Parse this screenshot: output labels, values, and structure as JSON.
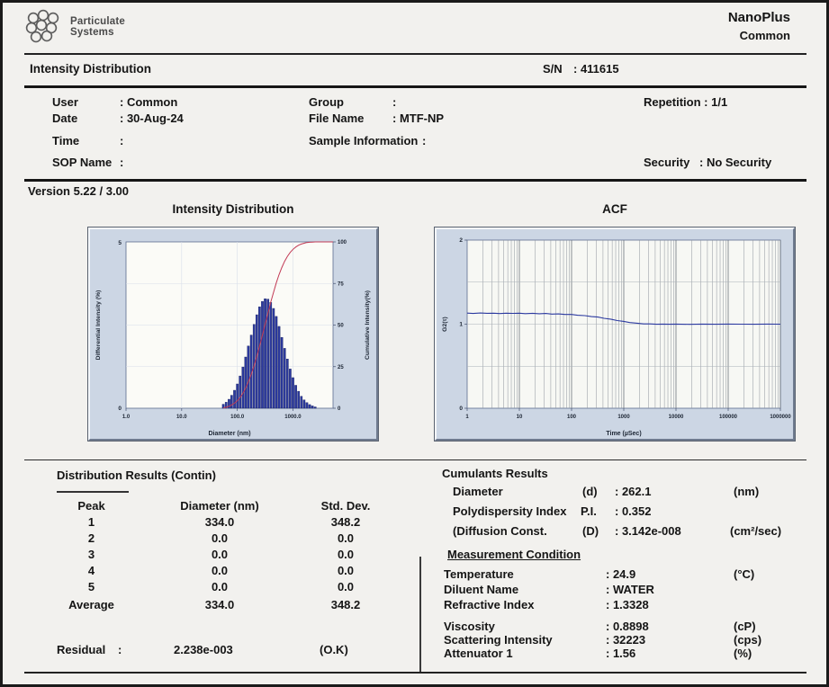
{
  "header": {
    "brand_line1": "Particulate",
    "brand_line2": "Systems",
    "product": "NanoPlus",
    "mode": "Common"
  },
  "report": {
    "title": "Intensity Distribution",
    "sn_label": "S/N",
    "sn_value": ": 411615",
    "version": "Version 5.22 / 3.00"
  },
  "info": {
    "user_label": "User",
    "user_value": ": Common",
    "date_label": "Date",
    "date_value": ": 30-Aug-24",
    "time_label": "Time",
    "time_value": ":",
    "sop_label": "SOP Name",
    "sop_value": ":",
    "group_label": "Group",
    "group_value": ":",
    "file_label": "File Name",
    "file_value": ": MTF-NP",
    "sample_label": "Sample Information",
    "sample_value": ":",
    "repetition": "Repetition : 1/1",
    "security_label": "Security",
    "security_value": ": No Security"
  },
  "distribution": {
    "title": "Distribution Results (Contin)",
    "columns": [
      "Peak",
      "Diameter (nm)",
      "Std. Dev."
    ],
    "rows": [
      {
        "peak": "1",
        "diameter": "334.0",
        "std": "348.2"
      },
      {
        "peak": "2",
        "diameter": "0.0",
        "std": "0.0"
      },
      {
        "peak": "3",
        "diameter": "0.0",
        "std": "0.0"
      },
      {
        "peak": "4",
        "diameter": "0.0",
        "std": "0.0"
      },
      {
        "peak": "5",
        "diameter": "0.0",
        "std": "0.0"
      },
      {
        "peak": "Average",
        "diameter": "334.0",
        "std": "348.2"
      }
    ],
    "residual_label": "Residual",
    "residual_colon": ":",
    "residual_value": "2.238e-003",
    "residual_flag": "(O.K)"
  },
  "cumulants": {
    "title": "Cumulants Results",
    "rows": [
      {
        "label": "Diameter",
        "symbol": "(d)",
        "value": ": 262.1",
        "unit": "(nm)"
      },
      {
        "label": "Polydispersity Index",
        "symbol": "P.I.",
        "value": ": 0.352",
        "unit": ""
      },
      {
        "label": "(Diffusion Const.",
        "symbol": "(D)",
        "value": ": 3.142e-008",
        "unit": "(cm²/sec)"
      }
    ]
  },
  "measurement": {
    "title": "Measurement Condition",
    "rows": [
      {
        "label": "Temperature",
        "value": ": 24.9",
        "unit": "(°C)"
      },
      {
        "label": "Diluent Name",
        "value": ": WATER",
        "unit": ""
      },
      {
        "label": "Refractive Index",
        "value": ": 1.3328",
        "unit": ""
      },
      {
        "label": "Viscosity",
        "value": ": 0.8898",
        "unit": "(cP)"
      },
      {
        "label": "Scattering Intensity",
        "value": ": 32223",
        "unit": "(cps)"
      },
      {
        "label": "Attenuator 1",
        "value": ": 1.56",
        "unit": "(%)"
      }
    ]
  },
  "chart_data": [
    {
      "type": "bar",
      "title": "Intensity Distribution",
      "xlabel": "Diameter (nm)",
      "ylabel": "Differential Intensity (%)",
      "ylabel_right": "Cumulative Intensity(%)",
      "x_scale": "log",
      "xlim_log10": [
        0,
        3.72
      ],
      "ylim": [
        0,
        5
      ],
      "ylim_right": [
        0,
        100
      ],
      "x_ticks": [
        "1.0",
        "10.0",
        "100.0",
        "1000.0"
      ],
      "y_ticks": [
        0,
        5
      ],
      "y_right_ticks": [
        0,
        25,
        50,
        75,
        100
      ],
      "bar_color": "#2c3aa0",
      "bar_stroke": "#18215f",
      "line_color": "#c23a55",
      "diameters": [
        56,
        63,
        71,
        79,
        89,
        100,
        112,
        126,
        141,
        158,
        178,
        200,
        224,
        251,
        282,
        316,
        355,
        398,
        447,
        501,
        562,
        631,
        708,
        794,
        891,
        1000,
        1122,
        1259,
        1413,
        1585,
        1778,
        1995,
        2239,
        2512
      ],
      "differential": [
        0.12,
        0.18,
        0.27,
        0.39,
        0.54,
        0.73,
        0.97,
        1.24,
        1.54,
        1.87,
        2.2,
        2.52,
        2.81,
        3.05,
        3.21,
        3.29,
        3.28,
        3.18,
        3.0,
        2.76,
        2.46,
        2.13,
        1.8,
        1.48,
        1.18,
        0.92,
        0.69,
        0.51,
        0.36,
        0.25,
        0.17,
        0.11,
        0.07,
        0.04
      ],
      "cumulative": [
        0.2,
        0.6,
        1.2,
        2.0,
        3.0,
        4.5,
        6.5,
        9.0,
        12.1,
        15.9,
        20.4,
        25.5,
        31.2,
        37.4,
        43.9,
        50.6,
        57.2,
        63.7,
        69.7,
        75.3,
        80.3,
        84.6,
        88.3,
        91.3,
        93.7,
        95.5,
        96.9,
        98.0,
        98.7,
        99.2,
        99.6,
        99.8,
        99.9,
        100.0
      ]
    },
    {
      "type": "line",
      "title": "ACF",
      "xlabel": "Time (µSec)",
      "ylabel": "G2(τ)",
      "x_scale": "log",
      "xlim_log10": [
        0,
        6
      ],
      "ylim": [
        0,
        2
      ],
      "x_ticks": [
        "1",
        "10",
        "100",
        "1000",
        "10000",
        "100000",
        "1000000"
      ],
      "y_ticks": [
        0,
        1,
        2
      ],
      "line_color": "#2c3aa0",
      "grid": "dense-log-vertical",
      "t": [
        1,
        1.3,
        1.8,
        2.4,
        3.2,
        4.2,
        5.6,
        7.5,
        10,
        13,
        18,
        24,
        32,
        42,
        56,
        75,
        100,
        130,
        180,
        240,
        320,
        420,
        560,
        750,
        1000,
        1300,
        1800,
        2400,
        3200,
        4200,
        5600,
        7500,
        10000,
        18000,
        32000,
        56000,
        100000,
        180000,
        320000,
        560000,
        1000000
      ],
      "g2": [
        1.132,
        1.127,
        1.133,
        1.129,
        1.131,
        1.126,
        1.13,
        1.128,
        1.131,
        1.125,
        1.129,
        1.124,
        1.127,
        1.12,
        1.122,
        1.115,
        1.115,
        1.106,
        1.102,
        1.09,
        1.084,
        1.069,
        1.06,
        1.043,
        1.033,
        1.019,
        1.012,
        1.003,
        1.003,
        0.999,
        1.001,
        0.999,
        1.001,
        0.998,
        1.001,
        0.999,
        1.001,
        1.0,
        0.999,
        1.001,
        1.0
      ]
    }
  ]
}
